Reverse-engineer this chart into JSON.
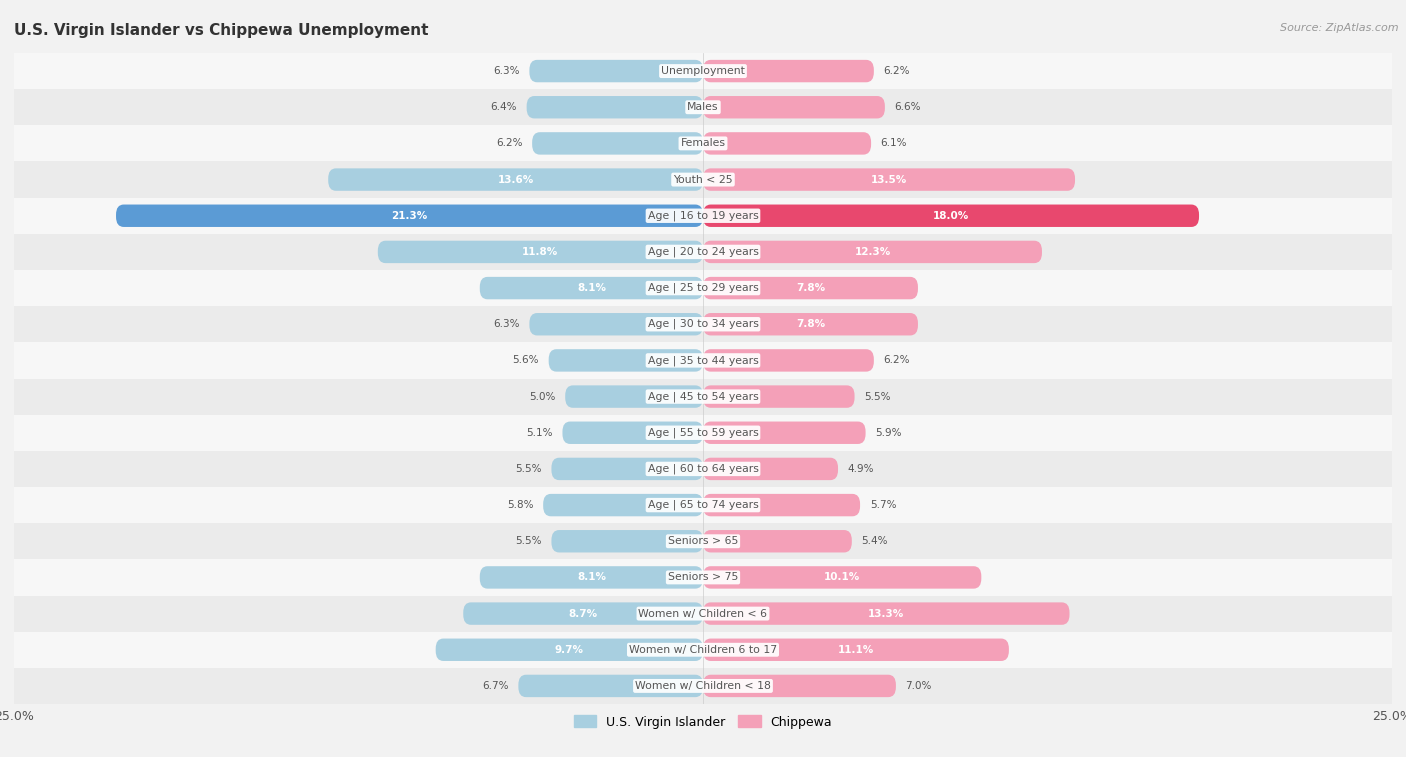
{
  "title": "U.S. Virgin Islander vs Chippewa Unemployment",
  "source": "Source: ZipAtlas.com",
  "categories": [
    "Unemployment",
    "Males",
    "Females",
    "Youth < 25",
    "Age | 16 to 19 years",
    "Age | 20 to 24 years",
    "Age | 25 to 29 years",
    "Age | 30 to 34 years",
    "Age | 35 to 44 years",
    "Age | 45 to 54 years",
    "Age | 55 to 59 years",
    "Age | 60 to 64 years",
    "Age | 65 to 74 years",
    "Seniors > 65",
    "Seniors > 75",
    "Women w/ Children < 6",
    "Women w/ Children 6 to 17",
    "Women w/ Children < 18"
  ],
  "virgin_islander": [
    6.3,
    6.4,
    6.2,
    13.6,
    21.3,
    11.8,
    8.1,
    6.3,
    5.6,
    5.0,
    5.1,
    5.5,
    5.8,
    5.5,
    8.1,
    8.7,
    9.7,
    6.7
  ],
  "chippewa": [
    6.2,
    6.6,
    6.1,
    13.5,
    18.0,
    12.3,
    7.8,
    7.8,
    6.2,
    5.5,
    5.9,
    4.9,
    5.7,
    5.4,
    10.1,
    13.3,
    11.1,
    7.0
  ],
  "vi_color_normal": "#a8cfe0",
  "vi_color_highlight": "#5b9bd5",
  "chip_color_normal": "#f4a0b8",
  "chip_color_highlight": "#e8486e",
  "max_val": 25.0,
  "bg_color": "#f2f2f2",
  "row_bg_light": "#f7f7f7",
  "row_bg_dark": "#ebebeb",
  "label_color": "#555555",
  "title_color": "#333333",
  "value_label_threshold": 7.5
}
